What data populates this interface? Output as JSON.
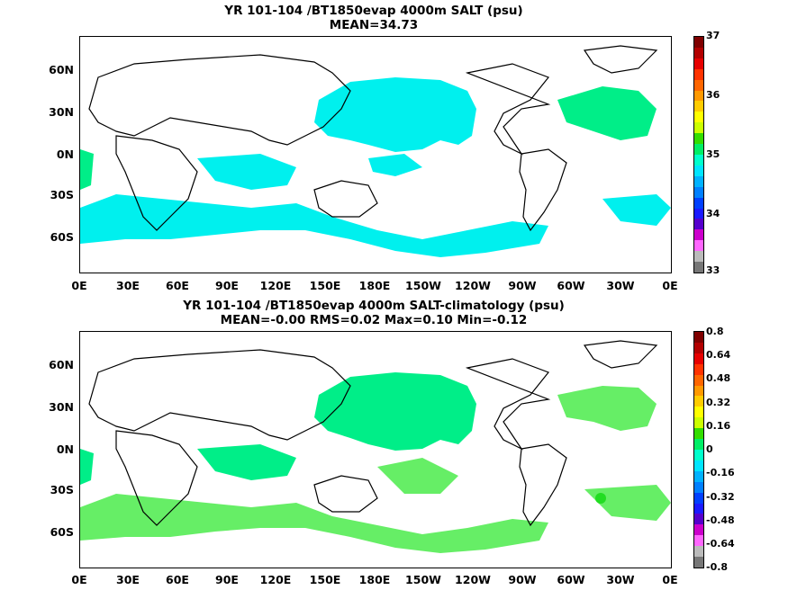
{
  "panel1": {
    "title_line1": "YR 101-104 /BT1850evap 4000m SALT (psu)",
    "title_line2": "MEAN=34.73",
    "colorbar_ticks": [
      "37",
      "36",
      "35",
      "34",
      "33"
    ],
    "colorbar_colors": [
      "#7f0000",
      "#b20000",
      "#e60000",
      "#ff3300",
      "#ff6600",
      "#ff9900",
      "#ffcc00",
      "#ffff00",
      "#ccff00",
      "#33dd00",
      "#00ee66",
      "#00ffcc",
      "#00e5ff",
      "#00b2ff",
      "#0080ff",
      "#0040ff",
      "#1a1aff",
      "#5500cc",
      "#cc00cc",
      "#ff66ff",
      "#bbbbbb",
      "#777777"
    ],
    "field_color": "#00f0ee"
  },
  "panel2": {
    "title_line1": "YR 101-104 /BT1850evap 4000m SALT-climatology (psu)",
    "title_line2": "MEAN=-0.00   RMS=0.02   Max=0.10   Min=-0.12",
    "colorbar_ticks": [
      "0.8",
      "0.64",
      "0.48",
      "0.32",
      "0.16",
      "0",
      "-0.16",
      "-0.32",
      "-0.48",
      "-0.64",
      "-0.8"
    ],
    "colorbar_colors": [
      "#7f0000",
      "#b20000",
      "#e60000",
      "#ff3300",
      "#ff6600",
      "#ff9900",
      "#ffcc00",
      "#ffff00",
      "#ccff00",
      "#33dd00",
      "#00ee66",
      "#00ffcc",
      "#00e5ff",
      "#00b2ff",
      "#0080ff",
      "#0040ff",
      "#1a1aff",
      "#5500cc",
      "#cc00cc",
      "#ff66ff",
      "#bbbbbb",
      "#777777"
    ],
    "field_color": "#00ee88",
    "field_color2": "#66ee66"
  },
  "axes": {
    "lat_labels": [
      "60N",
      "30N",
      "0N",
      "30S",
      "60S"
    ],
    "lon_labels": [
      "0E",
      "30E",
      "60E",
      "90E",
      "120E",
      "150E",
      "180E",
      "150W",
      "120W",
      "90W",
      "60W",
      "30W",
      "0E"
    ]
  }
}
